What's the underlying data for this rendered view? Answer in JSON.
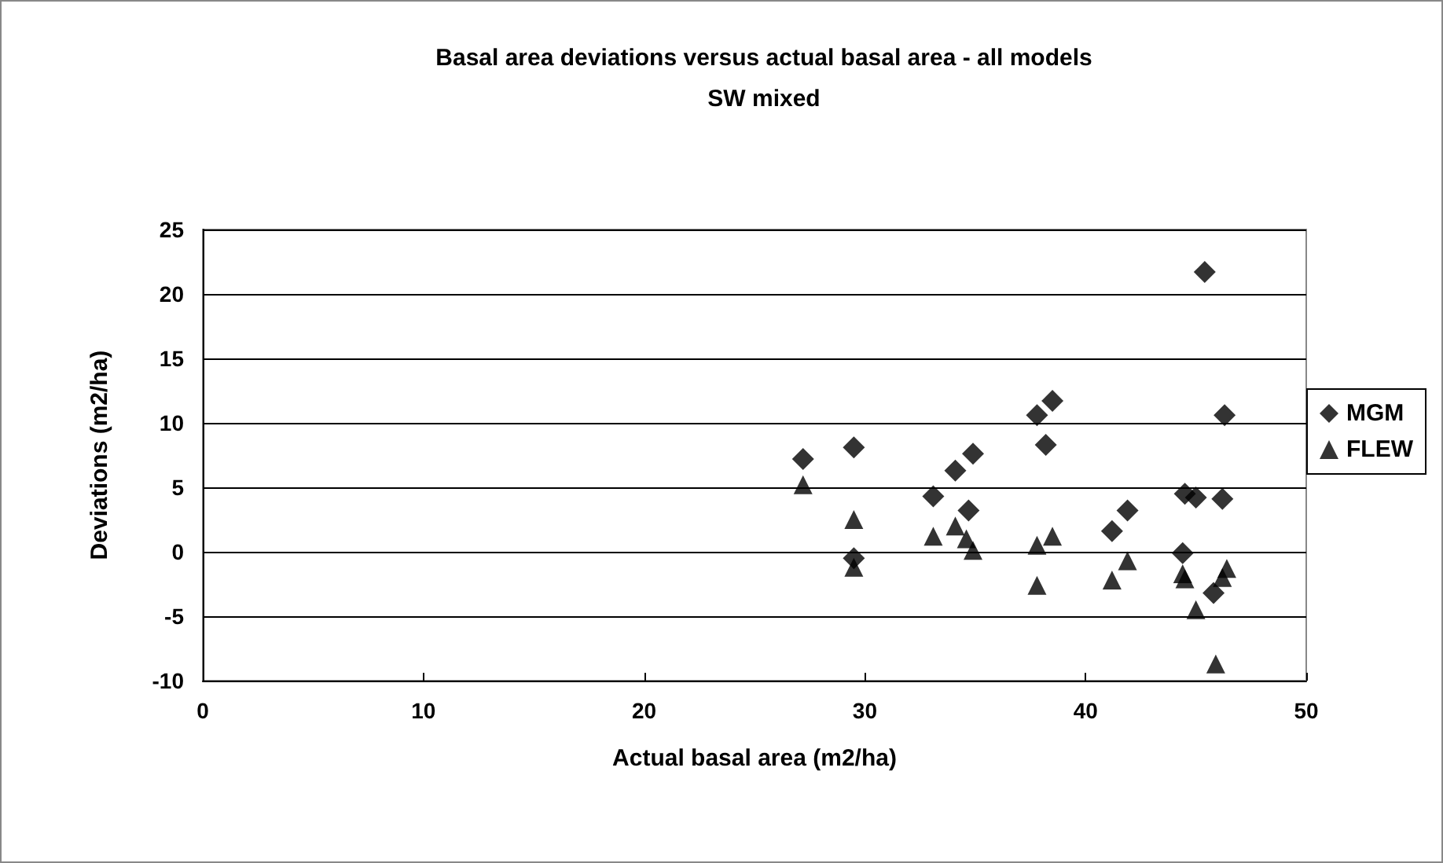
{
  "chart_data": {
    "type": "scatter",
    "title": "Basal area deviations versus actual basal area - all models\nSW mixed",
    "xlabel": "Actual basal area (m2/ha)",
    "ylabel": "Deviations (m2/ha)",
    "xlim": [
      0,
      50
    ],
    "xticks": [
      0,
      10,
      20,
      30,
      40,
      50
    ],
    "ylim": [
      -10,
      25
    ],
    "yticks": [
      -10,
      -5,
      0,
      5,
      10,
      15,
      20,
      25
    ],
    "grid": "y",
    "legend": "right",
    "series": [
      {
        "name": "MGM",
        "color": "#000000",
        "marker": "diamond",
        "x": [
          27.2,
          29.5,
          29.5,
          33.1,
          34.1,
          34.7,
          34.9,
          37.8,
          38.2,
          38.5,
          41.2,
          41.9,
          44.4,
          44.5,
          45,
          45.4,
          46.2,
          46.3,
          45.8
        ],
        "values": [
          7.2,
          8.1,
          -0.5,
          4.3,
          6.3,
          3.2,
          7.6,
          10.6,
          8.3,
          11.7,
          1.6,
          3.2,
          -0.1,
          4.5,
          4.2,
          21.7,
          4.1,
          10.6,
          -3.2
        ]
      },
      {
        "name": "FLEW",
        "color": "#000000",
        "marker": "triangle",
        "x": [
          27.2,
          29.5,
          29.5,
          33.1,
          34.1,
          34.6,
          34.9,
          37.8,
          37.8,
          38.5,
          41.2,
          41.9,
          44.4,
          44.5,
          45,
          45.9,
          46.2,
          46.4
        ],
        "values": [
          5.2,
          2.5,
          -1.2,
          1.2,
          2.0,
          1.0,
          0.1,
          -2.6,
          0.5,
          1.2,
          -2.2,
          -0.7,
          -1.7,
          -2.1,
          -4.5,
          -8.7,
          -2.0,
          -1.3
        ]
      }
    ]
  }
}
